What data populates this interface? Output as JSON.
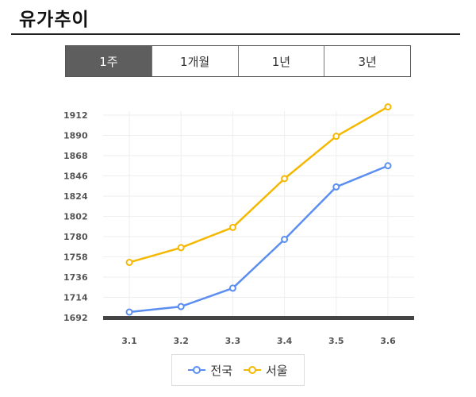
{
  "header": {
    "title": "유가추이"
  },
  "period_tabs": {
    "items": [
      "1주",
      "1개월",
      "1년",
      "3년"
    ],
    "active": "1주"
  },
  "colors": {
    "national": "#5b8ef0",
    "seoul": "#f5b800",
    "active_tab": "#5e5e5e",
    "grid": "#eeeeee",
    "baseline": "#444444"
  },
  "chart_data": {
    "type": "line",
    "categories": [
      "3.1",
      "3.2",
      "3.3",
      "3.4",
      "3.5",
      "3.6"
    ],
    "yticks": [
      "1912",
      "1890",
      "1868",
      "1846",
      "1824",
      "1802",
      "1780",
      "1758",
      "1736",
      "1714",
      "1692"
    ],
    "ylim": [
      1692,
      1912
    ],
    "grid": true,
    "legend_position": "bottom-center",
    "series": [
      {
        "name": "전국",
        "values": [
          1698,
          1704,
          1724,
          1777,
          1834,
          1857
        ]
      },
      {
        "name": "서울",
        "values": [
          1752,
          1768,
          1790,
          1843,
          1889,
          1921
        ]
      }
    ]
  }
}
